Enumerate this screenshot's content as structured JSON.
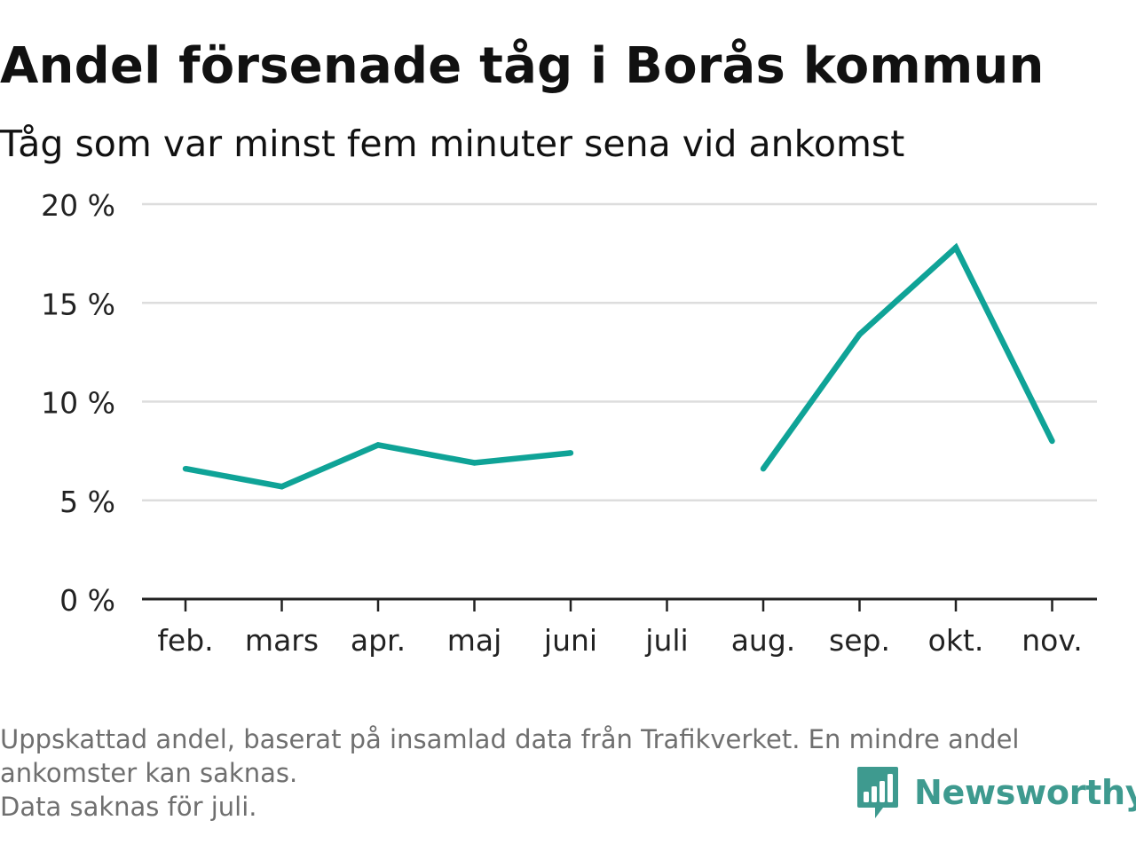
{
  "title": "Andel försenade tåg i Borås kommun",
  "subtitle": "Tåg som var minst fem minuter sena vid ankomst",
  "footnote": {
    "line1": "Uppskattad andel, baserat på insamlad data från Trafikverket. En mindre andel",
    "line2": "ankomster kan saknas.",
    "line3": "Data saknas för juli."
  },
  "brand": {
    "name": "Newsworthy",
    "icon": "newsworthy-logo-icon",
    "color": "#3e9a8f"
  },
  "chart_data": {
    "type": "line",
    "categories": [
      "feb.",
      "mars",
      "apr.",
      "maj",
      "juni",
      "juli",
      "aug.",
      "sep.",
      "okt.",
      "nov."
    ],
    "series": [
      {
        "values": [
          6.6,
          5.7,
          7.8,
          6.9,
          7.4,
          null,
          6.6,
          13.4,
          17.8,
          8.0
        ],
        "color": "#0fa397"
      }
    ],
    "ylim": [
      0,
      20
    ],
    "yticks": [
      0,
      5,
      10,
      15,
      20
    ],
    "ytick_labels": [
      "0 %",
      "5 %",
      "10 %",
      "15 %",
      "20 %"
    ],
    "xlabel": "",
    "ylabel": "",
    "grid": true,
    "grid_color": "#dddddd",
    "axis_color": "#222222"
  }
}
